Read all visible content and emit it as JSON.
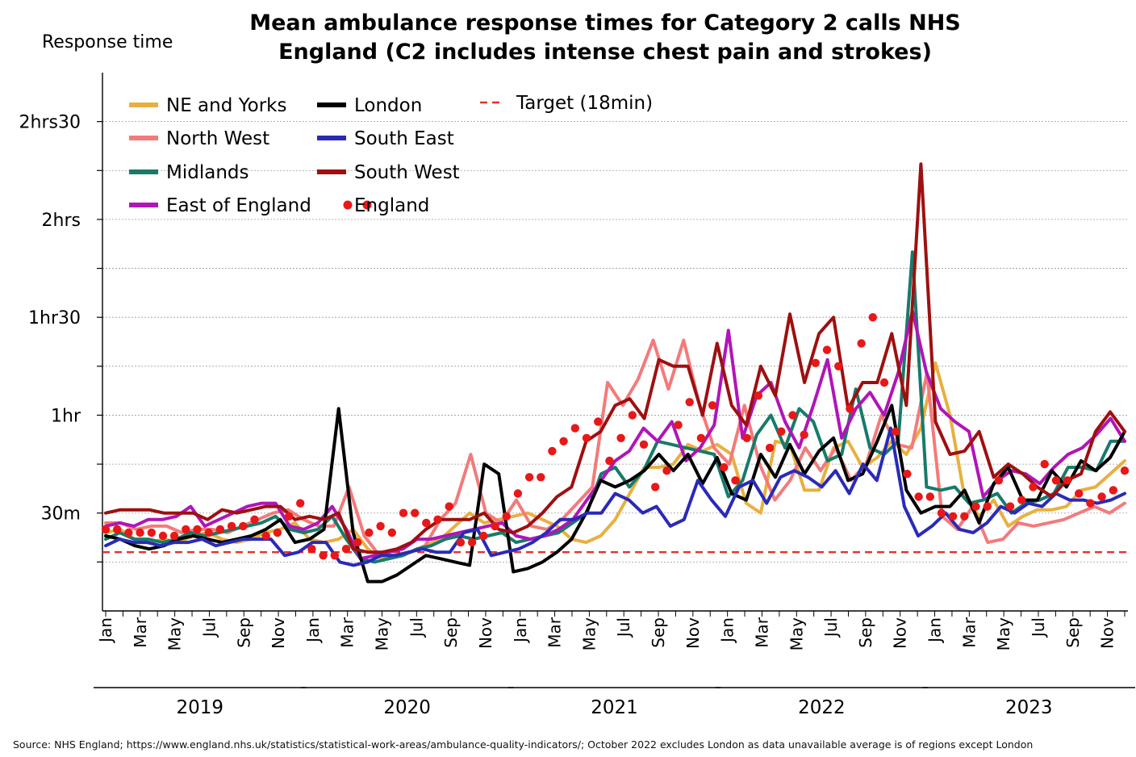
{
  "chart_data": {
    "type": "line",
    "title": "Mean ambulance response times for Category 2 calls NHS England (C2 includes intense chest pain and strokes)",
    "title_lines": [
      "Mean ambulance response times for Category 2 calls NHS",
      "England (C2 includes intense chest pain and strokes)"
    ],
    "ylabel": "Response time",
    "ylim": [
      0,
      165
    ],
    "y_unit": "minutes",
    "grid": "horizontal dotted",
    "y_ticks": [
      {
        "value": 30,
        "label": "30m"
      },
      {
        "value": 60,
        "label": "1hr"
      },
      {
        "value": 90,
        "label": "1hr30"
      },
      {
        "value": 120,
        "label": "2hrs"
      },
      {
        "value": 150,
        "label": "2hrs30"
      }
    ],
    "month_labels": [
      "Jan",
      "Mar",
      "May",
      "Jul",
      "Sep",
      "Nov"
    ],
    "years": [
      "2019",
      "2020",
      "2021",
      "2022",
      "2023"
    ],
    "target": {
      "name": "Target (18min)",
      "value": 18,
      "color": "#e8302a"
    },
    "legend_placement": "top-left",
    "series": [
      {
        "name": "NE and Yorks",
        "color": "#e8b040",
        "values": [
          24,
          25,
          22,
          21,
          22,
          21,
          23,
          24,
          22,
          21,
          22,
          24,
          25,
          27,
          22,
          21,
          22,
          25,
          19,
          16,
          17,
          18,
          20,
          22,
          26,
          30,
          27,
          28,
          29,
          30,
          28,
          26,
          22,
          21,
          23,
          28,
          36,
          44,
          44,
          45,
          51,
          49,
          51,
          48,
          33,
          30,
          52,
          51,
          37,
          37,
          50,
          52,
          44,
          47,
          52,
          48,
          56,
          76,
          60,
          35,
          29,
          34,
          26,
          29,
          31,
          31,
          32,
          37,
          38,
          42,
          46
        ]
      },
      {
        "name": "North West",
        "color": "#f47a7a",
        "values": [
          27,
          27,
          25,
          26,
          26,
          24,
          25,
          25,
          24,
          26,
          28,
          30,
          31,
          28,
          26,
          26,
          38,
          23,
          17,
          17,
          18,
          20,
          28,
          33,
          48,
          30,
          27,
          34,
          26,
          25,
          28,
          33,
          38,
          70,
          63,
          71,
          83,
          68,
          83,
          64,
          50,
          45,
          63,
          45,
          34,
          40,
          50,
          43,
          50,
          40,
          45,
          60,
          51,
          50,
          73,
          29,
          25,
          32,
          21,
          22,
          27,
          26,
          27,
          28,
          30,
          32,
          30,
          33
        ]
      },
      {
        "name": "Midlands",
        "color": "#187a6a",
        "values": [
          22,
          24,
          22,
          22,
          21,
          22,
          24,
          23,
          24,
          25,
          26,
          27,
          29,
          25,
          24,
          25,
          29,
          22,
          16,
          15,
          16,
          17,
          19,
          20,
          22,
          23,
          22,
          23,
          24,
          21,
          22,
          23,
          24,
          27,
          30,
          42,
          44,
          38,
          43,
          52,
          51,
          50,
          49,
          48,
          35,
          40,
          54,
          60,
          50,
          62,
          58,
          46,
          48,
          68,
          50,
          48,
          52,
          110,
          38,
          37,
          38,
          33,
          34,
          36,
          30,
          33,
          34,
          36,
          44,
          44,
          43,
          52,
          52
        ]
      },
      {
        "name": "East of England",
        "color": "#b015b8",
        "values": [
          26,
          27,
          26,
          28,
          28,
          29,
          32,
          26,
          28,
          30,
          32,
          33,
          33,
          26,
          25,
          27,
          32,
          25,
          16,
          17,
          18,
          19,
          22,
          22,
          23,
          24,
          25,
          26,
          27,
          23,
          22,
          23,
          25,
          28,
          34,
          40,
          46,
          49,
          56,
          52,
          58,
          46,
          50,
          57,
          86,
          53,
          66,
          70,
          58,
          50,
          63,
          77,
          53,
          62,
          67,
          60,
          73,
          92,
          73,
          62,
          58,
          55,
          35,
          40,
          43,
          42,
          39,
          44,
          48,
          50,
          54,
          59,
          52
        ]
      },
      {
        "name": "London",
        "color": "#000000",
        "values": [
          23,
          22,
          20,
          19,
          20,
          22,
          23,
          22,
          21,
          22,
          23,
          25,
          28,
          21,
          22,
          25,
          62,
          24,
          9,
          9,
          11,
          14,
          17,
          16,
          15,
          14,
          45,
          42,
          12,
          13,
          15,
          18,
          22,
          30,
          40,
          38,
          40,
          43,
          48,
          43,
          48,
          39,
          47,
          36,
          34,
          48,
          41,
          51,
          42,
          49,
          53,
          40,
          42,
          52,
          63,
          37,
          30,
          32,
          32,
          37,
          27,
          39,
          44,
          34,
          34,
          43,
          38,
          46,
          43,
          47,
          55
        ]
      },
      {
        "name": "South East",
        "color": "#2a2ab8",
        "values": [
          20,
          22,
          21,
          21,
          20,
          21,
          21,
          22,
          20,
          21,
          22,
          22,
          22,
          17,
          18,
          21,
          21,
          15,
          14,
          15,
          17,
          17,
          18,
          19,
          18,
          18,
          24,
          25,
          17,
          18,
          19,
          21,
          24,
          28,
          28,
          30,
          30,
          36,
          34,
          30,
          32,
          26,
          28,
          40,
          34,
          29,
          38,
          40,
          33,
          41,
          43,
          41,
          38,
          43,
          36,
          45,
          40,
          56,
          32,
          23,
          26,
          30,
          25,
          24,
          27,
          32,
          30,
          33,
          32,
          36,
          34,
          34,
          33,
          34,
          36
        ]
      },
      {
        "name": "South West",
        "color": "#9e1010",
        "values": [
          30,
          31,
          31,
          31,
          30,
          30,
          30,
          28,
          31,
          30,
          31,
          32,
          32,
          28,
          29,
          28,
          30,
          19,
          18,
          18,
          19,
          21,
          25,
          28,
          28,
          28,
          30,
          25,
          24,
          26,
          30,
          35,
          38,
          52,
          55,
          63,
          65,
          59,
          77,
          75,
          75,
          60,
          82,
          63,
          57,
          75,
          66,
          91,
          70,
          85,
          90,
          62,
          70,
          70,
          85,
          63,
          137,
          58,
          48,
          49,
          55,
          41,
          45,
          42,
          38,
          35,
          40,
          42,
          55,
          61,
          55
        ]
      },
      {
        "name": "England",
        "color": "#e81818",
        "marker": "dot",
        "values": [
          25,
          25,
          24,
          24,
          24,
          23,
          23,
          25,
          25,
          24,
          25,
          26,
          26,
          28,
          23,
          24,
          29,
          33,
          19,
          17,
          17,
          19,
          21,
          24,
          26,
          24,
          30,
          30,
          27,
          28,
          32,
          21,
          21,
          23,
          26,
          29,
          36,
          41,
          41,
          49,
          52,
          56,
          53,
          58,
          46,
          53,
          60,
          51,
          38,
          43,
          57,
          64,
          53,
          63,
          44,
          40,
          53,
          66,
          50,
          55,
          60,
          54,
          76,
          80,
          75,
          62,
          82,
          90,
          70,
          55,
          42,
          35,
          35,
          30,
          29,
          29,
          32,
          32,
          40,
          32,
          34,
          38,
          45,
          40,
          40,
          36,
          33,
          35,
          37,
          43
        ]
      }
    ],
    "source": "Source: NHS England; https://www.england.nhs.uk/statistics/statistical-work-areas/ambulance-quality-indicators/; October 2022 excludes London as data unavailable average is of regions except London"
  }
}
